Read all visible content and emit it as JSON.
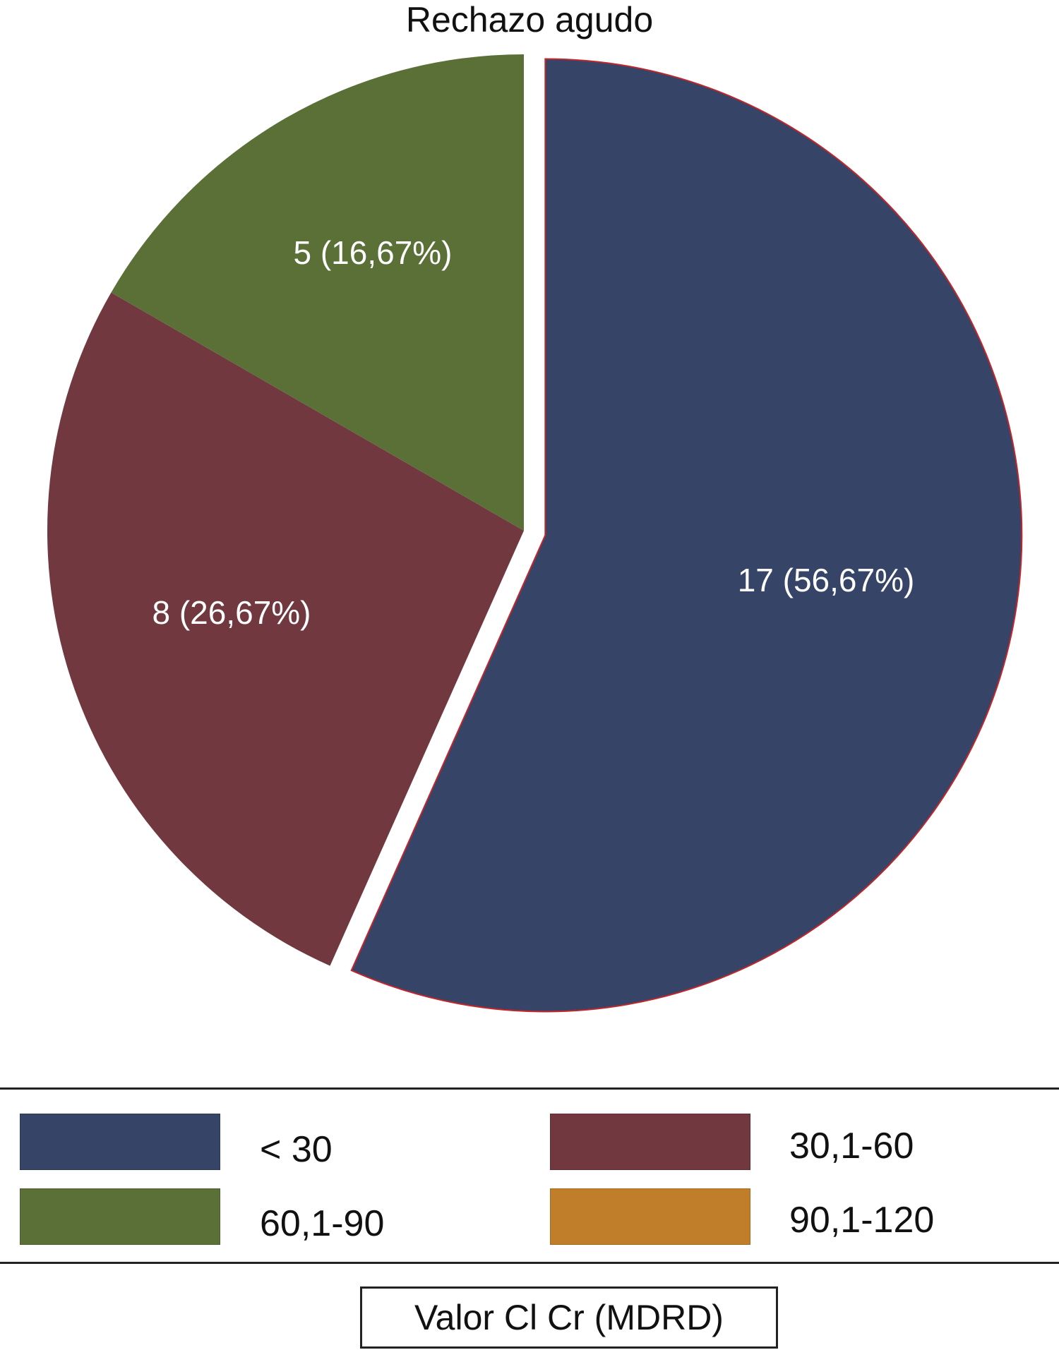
{
  "chart_data": {
    "type": "pie",
    "title": "Rechazo agudo",
    "slices": [
      {
        "category": "< 30",
        "value": 17,
        "label": "17 (56,67%)",
        "color": "#364467",
        "exploded": true
      },
      {
        "category": "30,1-60",
        "value": 8,
        "label": "8 (26,67%)",
        "color": "#713840",
        "exploded": false
      },
      {
        "category": "60,1-90",
        "value": 5,
        "label": "5 (16,67%)",
        "color": "#5a7037",
        "exploded": false
      },
      {
        "category": "90,1-120",
        "value": 0,
        "label": "",
        "color": "#c07e2b",
        "exploded": false
      }
    ],
    "legend": {
      "placement": "bottom",
      "entries": [
        {
          "label": "< 30",
          "color": "#364467"
        },
        {
          "label": "30,1-60",
          "color": "#713840"
        },
        {
          "label": "60,1-90",
          "color": "#5a7037"
        },
        {
          "label": "90,1-120",
          "color": "#c07e2b"
        }
      ]
    },
    "xlabel": "Valor Cl Cr (MDRD)"
  }
}
